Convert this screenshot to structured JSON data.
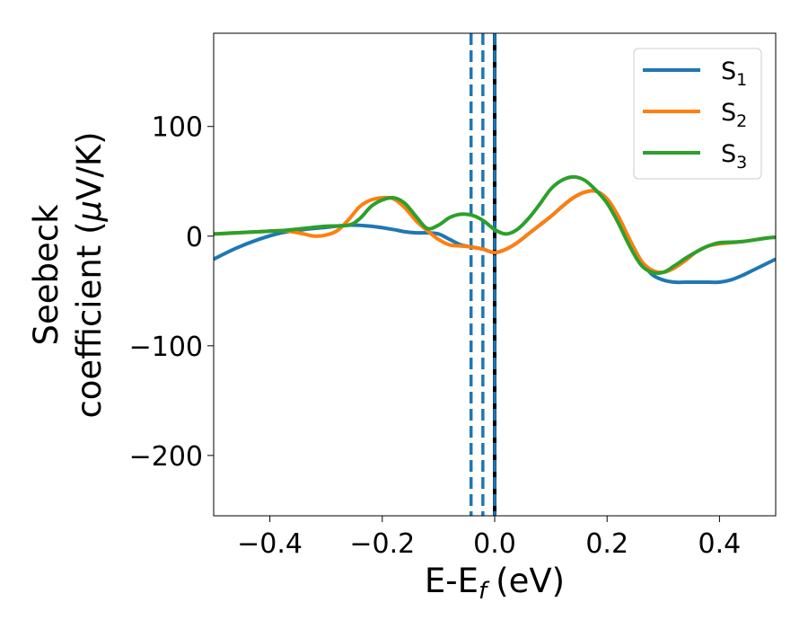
{
  "chart_data": {
    "type": "line",
    "xlabel": "E-E",
    "xlabel_sub": "f",
    "xlabel_unit": "(eV)",
    "ylabel_line1": "Seebeck",
    "ylabel_line2": "coefficient  (",
    "ylabel_mu": "μ",
    "ylabel_unit": "V/K)",
    "xlim": [
      -0.5,
      0.5
    ],
    "ylim": [
      -255,
      185
    ],
    "xticks": [
      -0.4,
      -0.2,
      0.0,
      0.2,
      0.4
    ],
    "xtick_labels": [
      "−0.4",
      "−0.2",
      "0.0",
      "0.2",
      "0.4"
    ],
    "yticks": [
      100,
      0,
      -100,
      -200
    ],
    "ytick_labels": [
      "100",
      "0",
      "−100",
      "−200"
    ],
    "grid": false,
    "legend_position": "top-right",
    "series": [
      {
        "name": "S",
        "name_sub": "1",
        "color": "#1f77b4",
        "x": [
          -0.5,
          -0.46,
          -0.42,
          -0.38,
          -0.34,
          -0.3,
          -0.26,
          -0.22,
          -0.18,
          -0.16,
          -0.14,
          -0.12,
          -0.1,
          -0.08,
          -0.06,
          -0.04,
          -0.02,
          0.0,
          0.02,
          0.04,
          0.06,
          0.08,
          0.1,
          0.12,
          0.14,
          0.16,
          0.18,
          0.2,
          0.22,
          0.24,
          0.26,
          0.28,
          0.3,
          0.32,
          0.34,
          0.36,
          0.38,
          0.4,
          0.42,
          0.44,
          0.46,
          0.48,
          0.5
        ],
        "y": [
          -21,
          -11,
          -3,
          3,
          6,
          8,
          10,
          9,
          6,
          4,
          3,
          3,
          2,
          -3,
          -8,
          -10,
          -12,
          -15,
          -12,
          -6,
          2,
          10,
          18,
          27,
          35,
          40,
          41,
          34,
          18,
          -3,
          -22,
          -35,
          -40,
          -42,
          -42,
          -42,
          -42,
          -42,
          -40,
          -36,
          -31,
          -26,
          -21
        ]
      },
      {
        "name": "S",
        "name_sub": "2",
        "color": "#ff7f0e",
        "x": [
          -0.5,
          -0.46,
          -0.42,
          -0.38,
          -0.36,
          -0.34,
          -0.32,
          -0.3,
          -0.28,
          -0.26,
          -0.24,
          -0.22,
          -0.2,
          -0.18,
          -0.16,
          -0.14,
          -0.12,
          -0.1,
          -0.08,
          -0.06,
          -0.04,
          -0.02,
          0.0,
          0.02,
          0.04,
          0.06,
          0.08,
          0.1,
          0.12,
          0.14,
          0.16,
          0.18,
          0.2,
          0.22,
          0.24,
          0.26,
          0.28,
          0.3,
          0.32,
          0.34,
          0.36,
          0.38,
          0.4,
          0.44,
          0.48,
          0.5
        ],
        "y": [
          2,
          3,
          4,
          5,
          4,
          2,
          0,
          1,
          5,
          15,
          27,
          33,
          35,
          34,
          26,
          14,
          5,
          -3,
          -8,
          -9,
          -10,
          -12,
          -15,
          -12,
          -6,
          2,
          10,
          18,
          27,
          35,
          40,
          41,
          34,
          18,
          -3,
          -22,
          -31,
          -33,
          -29,
          -22,
          -14,
          -9,
          -7,
          -5,
          -2,
          -1
        ]
      },
      {
        "name": "S",
        "name_sub": "3",
        "color": "#2ca02c",
        "x": [
          -0.5,
          -0.46,
          -0.42,
          -0.38,
          -0.34,
          -0.3,
          -0.26,
          -0.24,
          -0.22,
          -0.2,
          -0.18,
          -0.16,
          -0.14,
          -0.12,
          -0.1,
          -0.08,
          -0.06,
          -0.04,
          -0.02,
          0.0,
          0.02,
          0.04,
          0.06,
          0.08,
          0.1,
          0.12,
          0.14,
          0.16,
          0.18,
          0.2,
          0.22,
          0.24,
          0.26,
          0.28,
          0.3,
          0.32,
          0.34,
          0.36,
          0.38,
          0.4,
          0.44,
          0.48,
          0.5
        ],
        "y": [
          2,
          3,
          4,
          5,
          7,
          9,
          10,
          16,
          27,
          33,
          35,
          30,
          18,
          7,
          10,
          17,
          20,
          19,
          14,
          6,
          2,
          6,
          16,
          29,
          43,
          51,
          54,
          51,
          42,
          30,
          12,
          -9,
          -26,
          -33,
          -33,
          -27,
          -20,
          -14,
          -9,
          -6,
          -5,
          -2,
          -1
        ]
      }
    ],
    "vlines": [
      {
        "x": -0.042,
        "color": "#1f77b4",
        "style": "dashed"
      },
      {
        "x": -0.021,
        "color": "#1f77b4",
        "style": "dashed"
      },
      {
        "x": 0.0,
        "color": "#000000",
        "style": "solid"
      },
      {
        "x": 0.0,
        "color": "#1f77b4",
        "style": "dashed"
      }
    ]
  }
}
